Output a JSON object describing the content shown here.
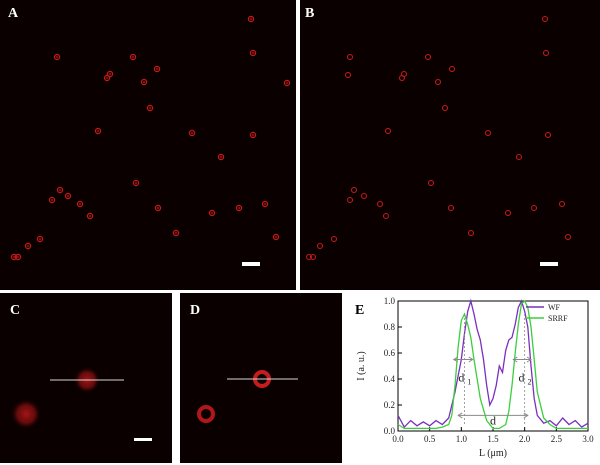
{
  "panels": {
    "A": {
      "label": "A"
    },
    "B": {
      "label": "B"
    },
    "C": {
      "label": "C"
    },
    "D": {
      "label": "D"
    },
    "E": {
      "label": "E"
    }
  },
  "colors": {
    "background": "#0a0000",
    "particle": "#c81818",
    "wf": "#7b2fbf",
    "srrf": "#3ccf3c",
    "annotation_arrow": "#8a8a8a"
  },
  "chart_data": {
    "type": "line",
    "title": "",
    "xlabel": "L (μm)",
    "ylabel": "I (a. u.)",
    "xlim": [
      0,
      3.0
    ],
    "ylim": [
      0,
      1.0
    ],
    "xticks": [
      "0.0",
      "0.5",
      "1.0",
      "1.5",
      "2.0",
      "2.5",
      "3.0"
    ],
    "yticks": [
      "0.0",
      "0.2",
      "0.4",
      "0.6",
      "0.8",
      "1.0"
    ],
    "legend": {
      "position": "top-right",
      "entries": [
        "WF",
        "SRRF"
      ]
    },
    "annotations": {
      "d1": "d",
      "d1_sub": "1",
      "d2": "d",
      "d2_sub": "2",
      "d": "d"
    },
    "series": [
      {
        "name": "WF",
        "x": [
          0.0,
          0.1,
          0.2,
          0.3,
          0.4,
          0.5,
          0.6,
          0.7,
          0.8,
          0.9,
          1.0,
          1.05,
          1.1,
          1.15,
          1.2,
          1.25,
          1.3,
          1.35,
          1.4,
          1.45,
          1.5,
          1.55,
          1.6,
          1.65,
          1.7,
          1.75,
          1.8,
          1.85,
          1.9,
          1.95,
          2.0,
          2.05,
          2.1,
          2.15,
          2.2,
          2.3,
          2.4,
          2.5,
          2.6,
          2.7,
          2.8,
          2.9,
          3.0
        ],
        "y": [
          0.12,
          0.03,
          0.08,
          0.04,
          0.07,
          0.04,
          0.08,
          0.05,
          0.1,
          0.3,
          0.55,
          0.75,
          0.92,
          1.0,
          0.9,
          0.78,
          0.7,
          0.55,
          0.35,
          0.2,
          0.25,
          0.35,
          0.5,
          0.45,
          0.62,
          0.7,
          0.72,
          0.82,
          0.95,
          1.0,
          0.92,
          0.8,
          0.5,
          0.25,
          0.12,
          0.06,
          0.08,
          0.04,
          0.1,
          0.05,
          0.08,
          0.03,
          0.06
        ]
      },
      {
        "name": "SRRF",
        "x": [
          0.0,
          0.1,
          0.2,
          0.3,
          0.4,
          0.5,
          0.6,
          0.7,
          0.8,
          0.85,
          0.9,
          0.95,
          1.0,
          1.05,
          1.1,
          1.15,
          1.2,
          1.3,
          1.4,
          1.5,
          1.6,
          1.7,
          1.75,
          1.8,
          1.85,
          1.9,
          1.95,
          2.0,
          2.05,
          2.1,
          2.15,
          2.2,
          2.3,
          2.4,
          2.5,
          2.6,
          2.7,
          2.8,
          2.9,
          3.0
        ],
        "y": [
          0.05,
          0.02,
          0.02,
          0.02,
          0.02,
          0.02,
          0.02,
          0.03,
          0.05,
          0.12,
          0.35,
          0.65,
          0.85,
          0.9,
          0.82,
          0.72,
          0.55,
          0.25,
          0.08,
          0.02,
          0.02,
          0.05,
          0.15,
          0.35,
          0.6,
          0.82,
          0.98,
          1.0,
          0.95,
          0.8,
          0.55,
          0.3,
          0.1,
          0.05,
          0.02,
          0.02,
          0.02,
          0.02,
          0.02,
          0.02
        ]
      }
    ]
  }
}
